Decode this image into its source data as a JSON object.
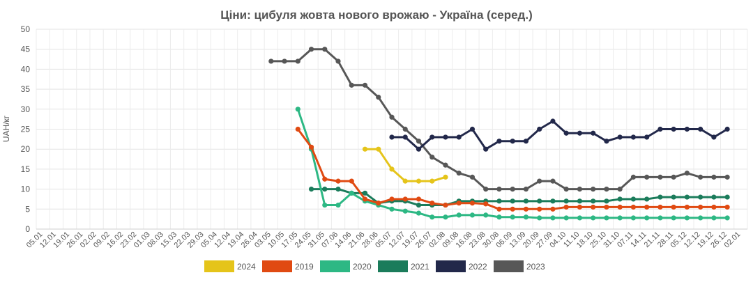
{
  "chart_data": {
    "type": "line",
    "title": "Ціни: цибуля жовта нового врожаю - Україна (серед.)",
    "xlabel": "",
    "ylabel": "UAH/кг",
    "ylim": [
      0,
      50
    ],
    "yticks": [
      0,
      5,
      10,
      15,
      20,
      25,
      30,
      35,
      40,
      45,
      50
    ],
    "grid": true,
    "legend_position": "bottom",
    "categories": [
      "05.01",
      "12.01",
      "19.01",
      "26.01",
      "02.02",
      "09.02",
      "16.02",
      "23.02",
      "01.03",
      "08.03",
      "15.03",
      "22.03",
      "29.03",
      "05.04",
      "12.04",
      "19.04",
      "26.04",
      "03.05",
      "10.05",
      "17.05",
      "24.05",
      "31.05",
      "07.06",
      "14.06",
      "21.06",
      "28.06",
      "05.07",
      "12.07",
      "19.07",
      "26.07",
      "02.08",
      "09.08",
      "16.08",
      "23.08",
      "30.08",
      "06.09",
      "13.09",
      "20.09",
      "27.09",
      "04.10",
      "11.10",
      "18.10",
      "25.10",
      "31.10",
      "07.11",
      "14.11",
      "21.11",
      "28.11",
      "05.12",
      "12.12",
      "19.12",
      "26.12",
      "02.01"
    ],
    "series": [
      {
        "name": "2024",
        "color": "#e5c41a",
        "values": [
          null,
          null,
          null,
          null,
          null,
          null,
          null,
          null,
          null,
          null,
          null,
          null,
          null,
          null,
          null,
          null,
          null,
          null,
          null,
          null,
          null,
          null,
          null,
          null,
          20,
          20,
          15,
          12,
          12,
          12,
          13,
          null,
          null,
          null,
          null,
          null,
          null,
          null,
          null,
          null,
          null,
          null,
          null,
          null,
          null,
          null,
          null,
          null,
          null,
          null,
          null,
          null,
          null
        ]
      },
      {
        "name": "2019",
        "color": "#e04a12",
        "values": [
          null,
          null,
          null,
          null,
          null,
          null,
          null,
          null,
          null,
          null,
          null,
          null,
          null,
          null,
          null,
          null,
          null,
          null,
          null,
          25,
          20.5,
          12.5,
          12,
          12,
          7.5,
          6.5,
          7.5,
          7.5,
          7.5,
          6.5,
          6,
          6.5,
          6.5,
          6.3,
          5,
          5,
          5,
          5,
          5,
          5.5,
          5.5,
          5.5,
          5.5,
          5.5,
          5.5,
          5.5,
          5.5,
          5.5,
          5.5,
          5.5,
          5.5,
          5.5,
          null
        ]
      },
      {
        "name": "2020",
        "color": "#2db884",
        "values": [
          null,
          null,
          null,
          null,
          null,
          null,
          null,
          null,
          null,
          null,
          null,
          null,
          null,
          null,
          null,
          null,
          null,
          null,
          null,
          30,
          20,
          6,
          6,
          9,
          7,
          6,
          5,
          4.5,
          4,
          3,
          3,
          3.5,
          3.5,
          3.5,
          3,
          3,
          3,
          2.8,
          2.8,
          2.8,
          2.8,
          2.8,
          2.8,
          2.8,
          2.8,
          2.8,
          2.8,
          2.8,
          2.8,
          2.8,
          2.8,
          2.8,
          null
        ]
      },
      {
        "name": "2021",
        "color": "#1b7c5b",
        "values": [
          null,
          null,
          null,
          null,
          null,
          null,
          null,
          null,
          null,
          null,
          null,
          null,
          null,
          null,
          null,
          null,
          null,
          null,
          null,
          null,
          10,
          10,
          10,
          9,
          9,
          6.5,
          7,
          7,
          6,
          6,
          6,
          7,
          7,
          7,
          7,
          7,
          7,
          7,
          7,
          7,
          7,
          7,
          7,
          7.5,
          7.5,
          7.5,
          8,
          8,
          8,
          8,
          8,
          8,
          null
        ]
      },
      {
        "name": "2022",
        "color": "#22284a",
        "values": [
          null,
          null,
          null,
          null,
          null,
          null,
          null,
          null,
          null,
          null,
          null,
          null,
          null,
          null,
          null,
          null,
          null,
          null,
          null,
          null,
          null,
          null,
          null,
          null,
          null,
          null,
          23,
          23,
          20,
          23,
          23,
          23,
          25,
          20,
          22,
          22,
          22,
          25,
          27,
          24,
          24,
          24,
          22,
          23,
          23,
          23,
          25,
          25,
          25,
          25,
          23,
          25,
          null
        ]
      },
      {
        "name": "2023",
        "color": "#575757",
        "values": [
          null,
          null,
          null,
          null,
          null,
          null,
          null,
          null,
          null,
          null,
          null,
          null,
          null,
          null,
          null,
          null,
          null,
          42,
          42,
          42,
          45,
          45,
          42,
          36,
          36,
          33,
          28,
          25,
          22,
          18,
          16,
          14,
          13,
          10,
          10,
          10,
          10,
          12,
          12,
          10,
          10,
          10,
          10,
          10,
          13,
          13,
          13,
          13,
          14,
          13,
          13,
          13,
          null
        ]
      }
    ]
  }
}
